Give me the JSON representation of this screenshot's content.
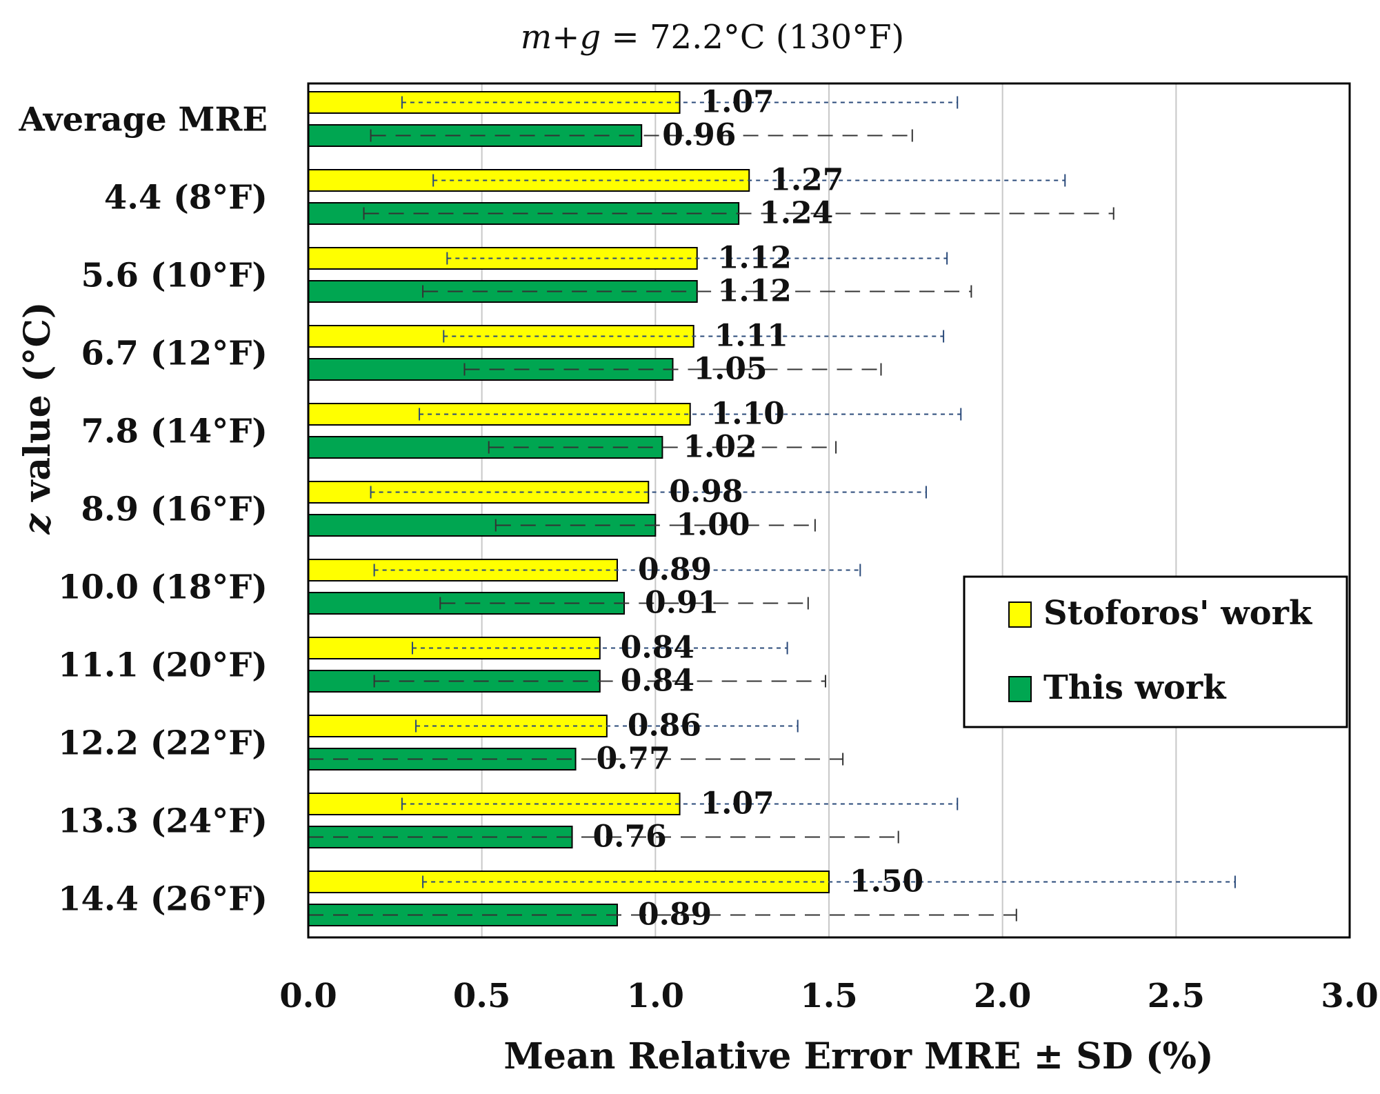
{
  "chart_data": {
    "type": "bar",
    "orientation": "horizontal",
    "title": {
      "variable": "m+g",
      "rest": " = 72.2°C (130°F)"
    },
    "xlabel": "Mean Relative Error MRE ± SD (%)",
    "ylabel": {
      "variable": "z",
      "rest": " value (°C)"
    },
    "xlim": [
      0,
      3.0
    ],
    "x_ticks": [
      "0.0",
      "0.5",
      "1.0",
      "1.5",
      "2.0",
      "2.5",
      "3.0"
    ],
    "grid": "vertical",
    "legend_position": "right",
    "categories": [
      "Average MRE",
      "4.4 (8°F)",
      "5.6 (10°F)",
      "6.7 (12°F)",
      "7.8 (14°F)",
      "8.9 (16°F)",
      "10.0 (18°F)",
      "11.1 (20°F)",
      "12.2 (22°F)",
      "13.3 (24°F)",
      "14.4 (26°F)"
    ],
    "series": [
      {
        "name": "Stoforos' work",
        "color": "#ffff00",
        "error_style": "dotted",
        "values": [
          1.07,
          1.27,
          1.12,
          1.11,
          1.1,
          0.98,
          0.89,
          0.84,
          0.86,
          1.07,
          1.5
        ],
        "labels": [
          "1.07",
          "1.27",
          "1.12",
          "1.11",
          "1.10",
          "0.98",
          "0.89",
          "0.84",
          "0.86",
          "1.07",
          "1.50"
        ],
        "sd": [
          0.8,
          0.91,
          0.72,
          0.72,
          0.78,
          0.8,
          0.7,
          0.54,
          0.55,
          0.8,
          1.17
        ]
      },
      {
        "name": "This work",
        "color": "#00a651",
        "error_style": "dashed",
        "values": [
          0.96,
          1.24,
          1.12,
          1.05,
          1.02,
          1.0,
          0.91,
          0.84,
          0.77,
          0.76,
          0.89
        ],
        "labels": [
          "0.96",
          "1.24",
          "1.12",
          "1.05",
          "1.02",
          "1.00",
          "0.91",
          "0.84",
          "0.77",
          "0.76",
          "0.89"
        ],
        "sd": [
          0.78,
          1.08,
          0.79,
          0.6,
          0.5,
          0.46,
          0.53,
          0.65,
          0.77,
          0.94,
          1.15
        ]
      }
    ]
  }
}
